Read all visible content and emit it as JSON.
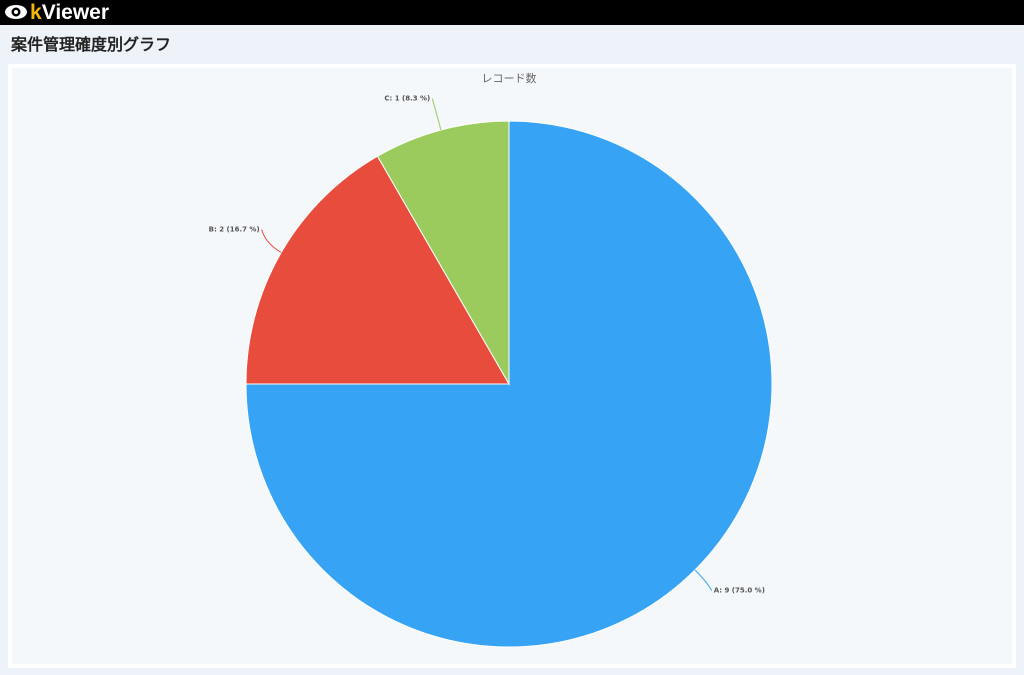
{
  "app": {
    "logo": "kViewer"
  },
  "page_title": "案件管理確度別グラフ",
  "chart_data": {
    "type": "pie",
    "title": "レコード数",
    "categories": [
      "A",
      "B",
      "C"
    ],
    "values": [
      9,
      2,
      1
    ],
    "value_labels": [
      "A: 9 (75.0 %)",
      "B: 2 (16.7 %)",
      "C: 1 (8.3 %)"
    ],
    "colors": [
      "#36a3f4",
      "#e74c3c",
      "#9ccb5d"
    ]
  }
}
